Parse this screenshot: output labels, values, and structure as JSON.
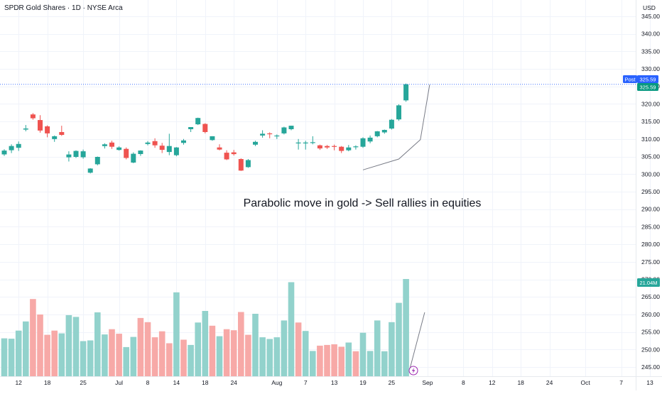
{
  "header": {
    "title": "SPDR Gold Shares · 1D · NYSE Arca",
    "currency": "USD"
  },
  "annotation": "Parabolic move in gold -> Sell rallies in equities",
  "chart_data": {
    "type": "candlestick",
    "y_axis": {
      "range": [
        243.5,
        347.5
      ],
      "ticks": [
        345,
        340,
        335,
        330,
        325,
        320,
        315,
        310,
        305,
        300,
        295,
        290,
        285,
        280,
        275,
        270,
        265,
        260,
        255,
        250,
        245
      ],
      "tick_labels": [
        "345.00",
        "340.00",
        "335.00",
        "330.00",
        "325.00",
        "320.00",
        "315.00",
        "310.00",
        "305.00",
        "300.00",
        "295.00",
        "290.00",
        "285.00",
        "280.00",
        "275.00",
        "270.00",
        "265.00",
        "260.00",
        "255.00",
        "250.00",
        "245.00"
      ]
    },
    "x_axis": {
      "labels": [
        {
          "label": "12",
          "bar": 2
        },
        {
          "label": "18",
          "bar": 6
        },
        {
          "label": "25",
          "bar": 11
        },
        {
          "label": "Jul",
          "bar": 16
        },
        {
          "label": "8",
          "bar": 20
        },
        {
          "label": "14",
          "bar": 24
        },
        {
          "label": "18",
          "bar": 28
        },
        {
          "label": "24",
          "bar": 32
        },
        {
          "label": "Aug",
          "bar": 38
        },
        {
          "label": "7",
          "bar": 42
        },
        {
          "label": "13",
          "bar": 46
        },
        {
          "label": "19",
          "bar": 50
        },
        {
          "label": "25",
          "bar": 54
        },
        {
          "label": "Sep",
          "bar": 59
        },
        {
          "label": "8",
          "bar": 64
        },
        {
          "label": "12",
          "bar": 68
        },
        {
          "label": "18",
          "bar": 72
        },
        {
          "label": "24",
          "bar": 76
        },
        {
          "label": "Oct",
          "bar": 81
        },
        {
          "label": "7",
          "bar": 86
        },
        {
          "label": "13",
          "bar": 90
        }
      ]
    },
    "candles": [
      {
        "o": 305.6,
        "h": 307.1,
        "l": 305.2,
        "c": 306.7
      },
      {
        "o": 306.8,
        "h": 308.5,
        "l": 306.0,
        "c": 308.0
      },
      {
        "o": 307.5,
        "h": 309.3,
        "l": 306.6,
        "c": 308.6
      },
      {
        "o": 312.7,
        "h": 314.0,
        "l": 312.2,
        "c": 313.0
      },
      {
        "o": 317.0,
        "h": 317.4,
        "l": 315.5,
        "c": 315.9
      },
      {
        "o": 315.4,
        "h": 316.8,
        "l": 311.8,
        "c": 312.4
      },
      {
        "o": 313.6,
        "h": 313.9,
        "l": 310.5,
        "c": 311.6
      },
      {
        "o": 310.0,
        "h": 311.0,
        "l": 309.2,
        "c": 310.8
      },
      {
        "o": 312.0,
        "h": 313.8,
        "l": 310.9,
        "c": 311.2
      },
      {
        "o": 304.8,
        "h": 306.5,
        "l": 303.6,
        "c": 305.6
      },
      {
        "o": 304.9,
        "h": 306.8,
        "l": 304.6,
        "c": 306.6
      },
      {
        "o": 304.8,
        "h": 307.0,
        "l": 304.4,
        "c": 306.5
      },
      {
        "o": 300.4,
        "h": 301.7,
        "l": 300.2,
        "c": 301.6
      },
      {
        "o": 302.8,
        "h": 305.0,
        "l": 302.5,
        "c": 304.9
      },
      {
        "o": 308.0,
        "h": 308.8,
        "l": 307.3,
        "c": 308.5
      },
      {
        "o": 309.0,
        "h": 309.5,
        "l": 307.2,
        "c": 307.8
      },
      {
        "o": 306.9,
        "h": 307.9,
        "l": 306.7,
        "c": 307.6
      },
      {
        "o": 307.2,
        "h": 307.6,
        "l": 304.2,
        "c": 304.6
      },
      {
        "o": 303.3,
        "h": 306.2,
        "l": 303.1,
        "c": 305.8
      },
      {
        "o": 305.7,
        "h": 306.8,
        "l": 305.2,
        "c": 306.7
      },
      {
        "o": 308.6,
        "h": 309.4,
        "l": 308.2,
        "c": 309.0
      },
      {
        "o": 309.4,
        "h": 310.2,
        "l": 307.5,
        "c": 308.2
      },
      {
        "o": 308.1,
        "h": 308.9,
        "l": 306.0,
        "c": 306.9
      },
      {
        "o": 306.3,
        "h": 311.5,
        "l": 305.4,
        "c": 308.0
      },
      {
        "o": 305.4,
        "h": 307.7,
        "l": 305.1,
        "c": 307.6
      },
      {
        "o": 308.9,
        "h": 310.0,
        "l": 308.4,
        "c": 309.6
      },
      {
        "o": 312.8,
        "h": 313.4,
        "l": 312.0,
        "c": 313.4
      },
      {
        "o": 314.2,
        "h": 316.1,
        "l": 314.0,
        "c": 316.0
      },
      {
        "o": 314.3,
        "h": 314.5,
        "l": 311.6,
        "c": 312.0
      },
      {
        "o": 309.7,
        "h": 310.8,
        "l": 309.5,
        "c": 310.8
      },
      {
        "o": 307.6,
        "h": 308.5,
        "l": 306.8,
        "c": 307.0
      },
      {
        "o": 306.1,
        "h": 306.8,
        "l": 304.0,
        "c": 304.2
      },
      {
        "o": 306.2,
        "h": 306.9,
        "l": 305.3,
        "c": 305.7
      },
      {
        "o": 304.3,
        "h": 304.5,
        "l": 300.9,
        "c": 301.0
      },
      {
        "o": 302.0,
        "h": 304.3,
        "l": 301.8,
        "c": 304.0
      },
      {
        "o": 308.4,
        "h": 309.5,
        "l": 308.0,
        "c": 309.2
      },
      {
        "o": 311.0,
        "h": 312.5,
        "l": 310.4,
        "c": 311.5
      },
      {
        "o": 311.6,
        "h": 311.9,
        "l": 310.2,
        "c": 311.5
      },
      {
        "o": 310.9,
        "h": 311.3,
        "l": 310.0,
        "c": 311.0
      },
      {
        "o": 311.6,
        "h": 313.5,
        "l": 311.3,
        "c": 313.3
      },
      {
        "o": 312.8,
        "h": 313.8,
        "l": 312.5,
        "c": 313.8
      },
      {
        "o": 309.0,
        "h": 310.0,
        "l": 307.0,
        "c": 309.0
      },
      {
        "o": 308.8,
        "h": 309.5,
        "l": 307.0,
        "c": 309.0
      },
      {
        "o": 308.9,
        "h": 310.8,
        "l": 308.5,
        "c": 309.1
      },
      {
        "o": 308.2,
        "h": 308.4,
        "l": 306.9,
        "c": 307.3
      },
      {
        "o": 308.0,
        "h": 308.3,
        "l": 307.2,
        "c": 307.6
      },
      {
        "o": 308.0,
        "h": 308.4,
        "l": 306.8,
        "c": 307.8
      },
      {
        "o": 307.8,
        "h": 308.0,
        "l": 306.0,
        "c": 306.6
      },
      {
        "o": 306.8,
        "h": 308.3,
        "l": 306.5,
        "c": 307.6
      },
      {
        "o": 307.8,
        "h": 308.2,
        "l": 307.0,
        "c": 307.9
      },
      {
        "o": 307.8,
        "h": 310.5,
        "l": 307.5,
        "c": 310.2
      },
      {
        "o": 309.3,
        "h": 311.0,
        "l": 308.8,
        "c": 310.4
      },
      {
        "o": 310.8,
        "h": 312.3,
        "l": 310.5,
        "c": 312.2
      },
      {
        "o": 311.9,
        "h": 312.7,
        "l": 311.5,
        "c": 312.6
      },
      {
        "o": 313.0,
        "h": 315.7,
        "l": 312.7,
        "c": 315.5
      },
      {
        "o": 315.6,
        "h": 319.9,
        "l": 315.2,
        "c": 319.6
      },
      {
        "o": 321.0,
        "h": 325.8,
        "l": 320.6,
        "c": 325.6
      }
    ],
    "volume": {
      "label": "21.04M",
      "ticks": [
        245,
        250,
        255,
        260,
        265
      ],
      "range": [
        243.5,
        272
      ],
      "bars": [
        {
          "v": 253.2,
          "up": true
        },
        {
          "v": 253.1,
          "up": true
        },
        {
          "v": 255.4,
          "up": true
        },
        {
          "v": 258.0,
          "up": true
        },
        {
          "v": 264.4,
          "up": false
        },
        {
          "v": 260.0,
          "up": false
        },
        {
          "v": 254.2,
          "up": false
        },
        {
          "v": 255.4,
          "up": false
        },
        {
          "v": 254.6,
          "up": true
        },
        {
          "v": 259.8,
          "up": true
        },
        {
          "v": 259.3,
          "up": true
        },
        {
          "v": 252.4,
          "up": true
        },
        {
          "v": 252.6,
          "up": true
        },
        {
          "v": 260.6,
          "up": true
        },
        {
          "v": 254.3,
          "up": true
        },
        {
          "v": 255.8,
          "up": false
        },
        {
          "v": 254.5,
          "up": false
        },
        {
          "v": 250.7,
          "up": true
        },
        {
          "v": 253.6,
          "up": true
        },
        {
          "v": 259.0,
          "up": false
        },
        {
          "v": 257.8,
          "up": false
        },
        {
          "v": 253.5,
          "up": false
        },
        {
          "v": 255.2,
          "up": false
        },
        {
          "v": 251.8,
          "up": false
        },
        {
          "v": 266.3,
          "up": true
        },
        {
          "v": 252.8,
          "up": false
        },
        {
          "v": 251.3,
          "up": true
        },
        {
          "v": 257.7,
          "up": true
        },
        {
          "v": 261.0,
          "up": true
        },
        {
          "v": 256.8,
          "up": false
        },
        {
          "v": 253.8,
          "up": true
        },
        {
          "v": 255.8,
          "up": false
        },
        {
          "v": 255.5,
          "up": false
        },
        {
          "v": 260.7,
          "up": false
        },
        {
          "v": 254.2,
          "up": false
        },
        {
          "v": 260.2,
          "up": true
        },
        {
          "v": 253.5,
          "up": true
        },
        {
          "v": 253.0,
          "up": true
        },
        {
          "v": 253.5,
          "up": true
        },
        {
          "v": 258.3,
          "up": true
        },
        {
          "v": 269.2,
          "up": true
        },
        {
          "v": 257.7,
          "up": false
        },
        {
          "v": 255.3,
          "up": true
        },
        {
          "v": 249.6,
          "up": true
        },
        {
          "v": 251.1,
          "up": false
        },
        {
          "v": 251.3,
          "up": false
        },
        {
          "v": 251.5,
          "up": false
        },
        {
          "v": 250.8,
          "up": false
        },
        {
          "v": 252.0,
          "up": true
        },
        {
          "v": 249.5,
          "up": false
        },
        {
          "v": 254.8,
          "up": true
        },
        {
          "v": 249.6,
          "up": true
        },
        {
          "v": 258.3,
          "up": true
        },
        {
          "v": 249.5,
          "up": true
        },
        {
          "v": 257.8,
          "up": true
        },
        {
          "v": 263.3,
          "up": true
        },
        {
          "v": 270.1,
          "up": true
        }
      ]
    },
    "price_labels": {
      "post_tag": "Post",
      "post_value": "325.59",
      "last_value": "325.59",
      "last_price": 325.59
    },
    "drawings": {
      "trend_line": [
        {
          "bar": 50,
          "y": 301.2
        },
        {
          "bar": 55,
          "y": 304.3
        },
        {
          "bar": 58,
          "y": 309.8
        },
        {
          "bar": 59.3,
          "y": 325.5
        }
      ],
      "volume_line": [
        {
          "bar": 56.5,
          "y": 244.2
        },
        {
          "bar": 58.6,
          "y": 260.6
        }
      ]
    },
    "series_colors": {
      "up": "#26a69a",
      "down": "#ef5350",
      "volume_up": "#92d2cc",
      "volume_down": "#f7a9a7",
      "price_tag": "#2962ff",
      "last_tag": "#089981"
    }
  }
}
